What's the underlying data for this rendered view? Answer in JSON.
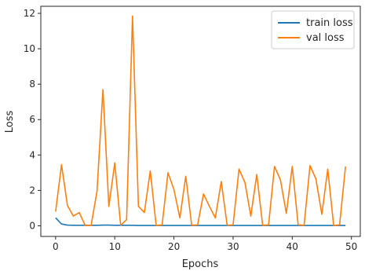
{
  "chart_data": {
    "type": "line",
    "title": "",
    "xlabel": "Epochs",
    "ylabel": "Loss",
    "xlim": [
      -2.5,
      51.5
    ],
    "ylim": [
      -0.6,
      12.4
    ],
    "xticks": [
      0,
      10,
      20,
      30,
      40,
      50
    ],
    "yticks": [
      0,
      2,
      4,
      6,
      8,
      10,
      12
    ],
    "grid": false,
    "legend_position": "top-right",
    "x": [
      0,
      1,
      2,
      3,
      4,
      5,
      6,
      7,
      8,
      9,
      10,
      11,
      12,
      13,
      14,
      15,
      16,
      17,
      18,
      19,
      20,
      21,
      22,
      23,
      24,
      25,
      26,
      27,
      28,
      29,
      30,
      31,
      32,
      33,
      34,
      35,
      36,
      37,
      38,
      39,
      40,
      41,
      42,
      43,
      44,
      45,
      46,
      47,
      48,
      49
    ],
    "series": [
      {
        "name": "train loss",
        "color": "#1f77b4",
        "values": [
          0.45,
          0.1,
          0.04,
          0.03,
          0.03,
          0.03,
          0.03,
          0.03,
          0.04,
          0.04,
          0.03,
          0.03,
          0.03,
          0.03,
          0.02,
          0.02,
          0.02,
          0.02,
          0.02,
          0.02,
          0.02,
          0.02,
          0.02,
          0.02,
          0.02,
          0.02,
          0.02,
          0.02,
          0.02,
          0.02,
          0.02,
          0.02,
          0.02,
          0.02,
          0.02,
          0.02,
          0.02,
          0.02,
          0.02,
          0.02,
          0.02,
          0.02,
          0.02,
          0.02,
          0.02,
          0.02,
          0.02,
          0.02,
          0.02,
          0.02
        ]
      },
      {
        "name": "val loss",
        "color": "#ff7f0e",
        "values": [
          0.8,
          3.45,
          1.15,
          0.55,
          0.75,
          0.02,
          0.02,
          1.95,
          7.7,
          1.1,
          3.55,
          0.03,
          0.35,
          11.85,
          1.1,
          0.75,
          3.1,
          0.02,
          0.05,
          3.0,
          2.05,
          0.45,
          2.8,
          0.03,
          0.05,
          1.8,
          1.1,
          0.45,
          2.5,
          0.03,
          0.05,
          3.2,
          2.45,
          0.55,
          2.9,
          0.03,
          0.05,
          3.35,
          2.6,
          0.7,
          3.35,
          0.05,
          0.03,
          3.4,
          2.65,
          0.65,
          3.2,
          0.02,
          0.05,
          3.35
        ]
      }
    ]
  }
}
